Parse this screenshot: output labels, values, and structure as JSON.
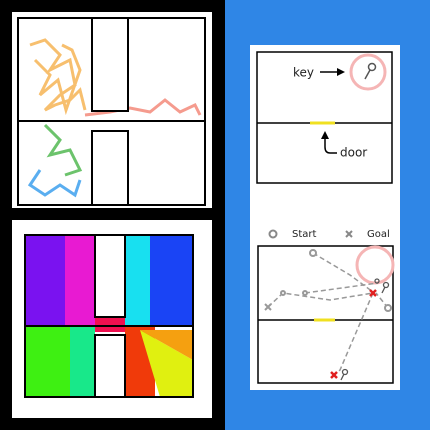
{
  "annotations": {
    "key": "key",
    "door": "door"
  },
  "legend": {
    "start": "Start",
    "goal": "Goal"
  }
}
